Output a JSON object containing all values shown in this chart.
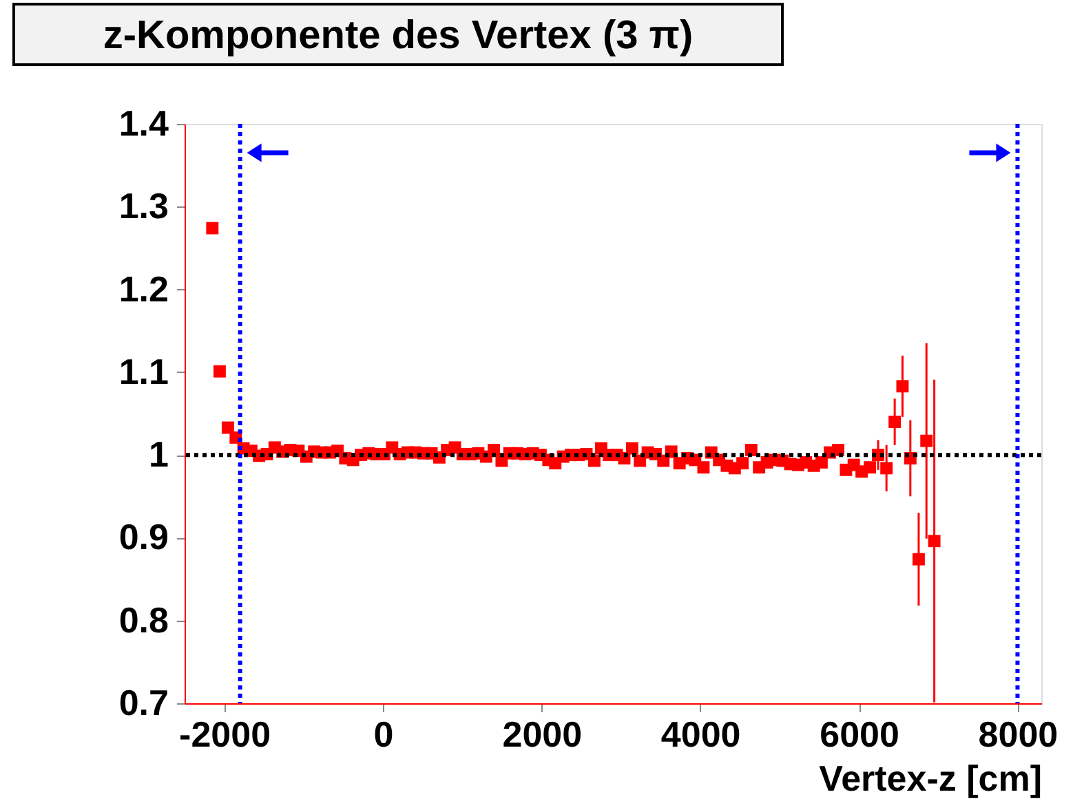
{
  "chart_data": {
    "type": "scatter",
    "title": "z-Komponente des Vertex (3 π)",
    "xlabel": "Vertex-z [cm]",
    "x": [
      -2150,
      -2058,
      -1954,
      -1855,
      -1757,
      -1659,
      -1561,
      -1462,
      -1364,
      -1266,
      -1168,
      -1064,
      -965,
      -867,
      -769,
      -670,
      -572,
      -474,
      -376,
      -277,
      -179,
      -81,
      17,
      116,
      214,
      312,
      410,
      509,
      613,
      711,
      809,
      908,
      1006,
      1104,
      1202,
      1301,
      1399,
      1497,
      1595,
      1694,
      1792,
      1890,
      1988,
      2087,
      2173,
      2272,
      2370,
      2468,
      2566,
      2665,
      2751,
      2850,
      2948,
      3043,
      3142,
      3240,
      3339,
      3438,
      3536,
      3635,
      3739,
      3838,
      3936,
      4041,
      4139,
      4238,
      4336,
      4435,
      4533,
      4643,
      4742,
      4841,
      4939,
      5038,
      5136,
      5235,
      5333,
      5432,
      5530,
      5635,
      5739,
      5838,
      5936,
      6035,
      6139,
      6243,
      6348,
      6452,
      6550,
      6649,
      6754,
      6852,
      6951
    ],
    "series": [
      {
        "color": "#ff0000",
        "values": [
          1.274,
          1.101,
          1.033,
          1.021,
          1.008,
          1.005,
          0.999,
          1.001,
          1.009,
          1.004,
          1.006,
          1.005,
          0.998,
          1.004,
          1.003,
          1.003,
          1.005,
          0.996,
          0.994,
          1.0,
          1.002,
          1.001,
          1.001,
          1.009,
          1.001,
          1.003,
          1.003,
          1.002,
          1.002,
          0.997,
          1.006,
          1.009,
          1.001,
          1.001,
          1.002,
          0.998,
          1.006,
          0.993,
          1.002,
          1.002,
          1.001,
          1.002,
          1.0,
          0.994,
          0.99,
          0.998,
          1.0,
          1.0,
          1.001,
          0.993,
          1.008,
          1.0,
          1.0,
          0.996,
          1.008,
          0.993,
          1.003,
          1.001,
          0.993,
          1.004,
          0.99,
          0.996,
          0.994,
          0.985,
          1.003,
          0.994,
          0.987,
          0.984,
          0.99,
          1.006,
          0.985,
          0.991,
          0.994,
          0.993,
          0.989,
          0.988,
          0.991,
          0.987,
          0.991,
          1.003,
          1.006,
          0.982,
          0.988,
          0.98,
          0.985,
          1.0,
          0.984,
          1.04,
          1.083,
          0.996,
          0.874,
          1.017,
          0.896
        ],
        "errors": [
          null,
          null,
          null,
          null,
          null,
          null,
          null,
          null,
          null,
          null,
          null,
          null,
          null,
          null,
          null,
          null,
          null,
          null,
          null,
          null,
          null,
          null,
          null,
          null,
          null,
          null,
          null,
          null,
          null,
          null,
          null,
          null,
          null,
          null,
          null,
          null,
          null,
          null,
          null,
          null,
          null,
          null,
          null,
          null,
          null,
          null,
          null,
          null,
          null,
          null,
          null,
          null,
          null,
          null,
          null,
          null,
          null,
          null,
          null,
          null,
          null,
          null,
          null,
          null,
          null,
          null,
          null,
          null,
          null,
          null,
          null,
          null,
          null,
          null,
          null,
          null,
          null,
          null,
          null,
          null,
          null,
          null,
          null,
          null,
          null,
          0.018,
          0.028,
          0.028,
          0.037,
          0.046,
          0.056,
          0.118,
          0.195
        ]
      }
    ],
    "marker": "square",
    "xlim": [
      -2500,
      8300
    ],
    "ylim": [
      0.7,
      1.4
    ],
    "xticks": [
      -2000,
      0,
      2000,
      4000,
      6000,
      8000
    ],
    "yticks": [
      0.7,
      0.8,
      0.9,
      1,
      1.1,
      1.2,
      1.3,
      1.4
    ],
    "grid": false,
    "ref_lines": [
      {
        "axis": "y",
        "value": 1,
        "color": "#000000",
        "line_style": "dotted"
      },
      {
        "axis": "x",
        "value": -1800,
        "color": "#0000ff",
        "line_style": "dotted"
      },
      {
        "axis": "x",
        "value": 8000,
        "color": "#0000ff",
        "line_style": "dotted"
      }
    ]
  }
}
